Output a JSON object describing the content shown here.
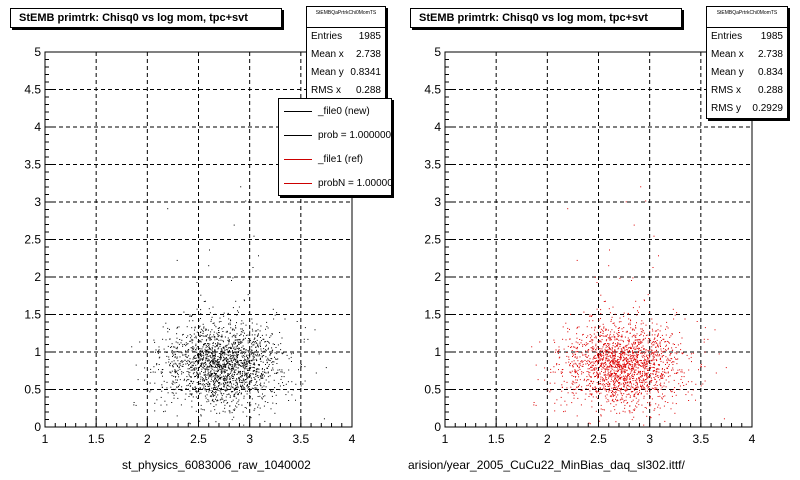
{
  "chart_data": [
    {
      "type": "scatter",
      "title": "StEMB primtrk: Chisq0 vs log mom, tpc+svt",
      "xlabel": "st_physics_6083006_raw_1040002",
      "ylabel": "",
      "xlim": [
        1,
        4
      ],
      "ylim": [
        0,
        5
      ],
      "x_ticks": [
        "1",
        "1.5",
        "2",
        "2.5",
        "3",
        "3.5",
        "4"
      ],
      "y_ticks": [
        "0",
        "0.5",
        "1",
        "1.5",
        "2",
        "2.5",
        "3",
        "3.5",
        "4",
        "4.5",
        "5"
      ],
      "grid": true,
      "marker_color": "#000000",
      "stats": {
        "name": "StEMBQaPrtrkChi0MomTS",
        "rows": [
          {
            "label": "Entries",
            "value": "1985"
          },
          {
            "label": "Mean x",
            "value": "2.738"
          },
          {
            "label": "Mean y",
            "value": "0.8341"
          },
          {
            "label": "RMS x",
            "value": "0.288"
          }
        ]
      },
      "legend": [
        {
          "label": "_file0 (new)",
          "color": "#000000"
        },
        {
          "label": "prob = 1.000000",
          "color": "#000000"
        },
        {
          "label": "_file1 (ref)",
          "color": "#cc0000"
        },
        {
          "label": "probN = 1.000000",
          "color": "#cc0000"
        }
      ],
      "distribution": {
        "entries": 1985,
        "mean_x": 2.738,
        "mean_y": 0.8341,
        "rms_x": 0.288,
        "rms_y": 0.2929
      }
    },
    {
      "type": "scatter",
      "title": "StEMB primtrk: Chisq0 vs log mom, tpc+svt",
      "xlabel": "arision/year_2005_CuCu22_MinBias_daq_sl302.ittf/",
      "ylabel": "",
      "xlim": [
        1,
        4
      ],
      "ylim": [
        0,
        5
      ],
      "x_ticks": [
        "1",
        "1.5",
        "2",
        "2.5",
        "3",
        "3.5",
        "4"
      ],
      "y_ticks": [
        "0",
        "0.5",
        "1",
        "1.5",
        "2",
        "2.5",
        "3",
        "3.5",
        "4",
        "4.5",
        "5"
      ],
      "grid": true,
      "marker_color": "#dd0000",
      "stats": {
        "name": "StEMBQaPrtrkChi0MomTS",
        "rows": [
          {
            "label": "Entries",
            "value": "1985"
          },
          {
            "label": "Mean x",
            "value": "2.738"
          },
          {
            "label": "Mean y",
            "value": "0.834"
          },
          {
            "label": "RMS x",
            "value": "0.288"
          },
          {
            "label": "RMS y",
            "value": "0.2929"
          }
        ]
      },
      "distribution": {
        "entries": 1985,
        "mean_x": 2.738,
        "mean_y": 0.834,
        "rms_x": 0.288,
        "rms_y": 0.2929
      }
    }
  ]
}
